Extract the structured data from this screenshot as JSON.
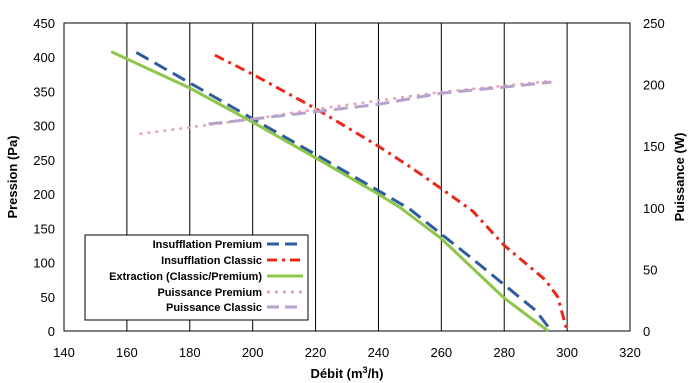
{
  "chart_data": {
    "type": "line",
    "x_axis": {
      "label": "Débit (m³/h)",
      "label_base": "Débit (m",
      "label_sup": "3",
      "label_tail": "/h)",
      "min": 140,
      "max": 320,
      "ticks": [
        140,
        160,
        180,
        200,
        220,
        240,
        260,
        280,
        300,
        320
      ]
    },
    "y_axis_left": {
      "label": "Pression (Pa)",
      "min": 0,
      "max": 450,
      "ticks": [
        0,
        50,
        100,
        150,
        200,
        250,
        300,
        350,
        400,
        450
      ]
    },
    "y_axis_right": {
      "label": "Puissance (W)",
      "min": 0,
      "max": 250,
      "ticks": [
        0,
        50,
        100,
        150,
        200,
        250
      ]
    },
    "grid": "vertical",
    "legend_position": "bottom-left",
    "series": [
      {
        "name": "Insufflation Premium",
        "axis": "left",
        "color": "#2e5c9e",
        "dash": "long-dash",
        "x": [
          163,
          200,
          220,
          240,
          250,
          270,
          290,
          295
        ],
        "y": [
          407,
          310,
          258,
          205,
          178,
          105,
          30,
          0
        ]
      },
      {
        "name": "Insufflation Classic",
        "axis": "left",
        "color": "#e8291c",
        "dash": "dash-dot",
        "x": [
          188,
          200,
          220,
          240,
          250,
          260,
          270,
          280,
          293,
          297,
          300
        ],
        "y": [
          403,
          375,
          325,
          270,
          240,
          208,
          175,
          125,
          75,
          50,
          0
        ]
      },
      {
        "name": "Extraction (Classic/Premium)",
        "axis": "left",
        "color": "#8ec649",
        "dash": "solid",
        "x": [
          155,
          180,
          200,
          220,
          240,
          247,
          260,
          280,
          294
        ],
        "y": [
          408,
          355,
          305,
          253,
          200,
          180,
          135,
          48,
          0
        ]
      },
      {
        "name": "Puissance Premium",
        "axis": "right",
        "color": "#eca1b5",
        "dash": "dot",
        "x": [
          164,
          200,
          220,
          240,
          260,
          280,
          295
        ],
        "y": [
          160,
          172,
          180,
          187,
          194,
          199,
          203
        ]
      },
      {
        "name": "Puissance Classic",
        "axis": "right",
        "color": "#b6a3cb",
        "dash": "long-dash",
        "x": [
          186,
          200,
          220,
          240,
          260,
          280,
          295
        ],
        "y": [
          168,
          172,
          178,
          184,
          193,
          198,
          202
        ]
      }
    ]
  }
}
